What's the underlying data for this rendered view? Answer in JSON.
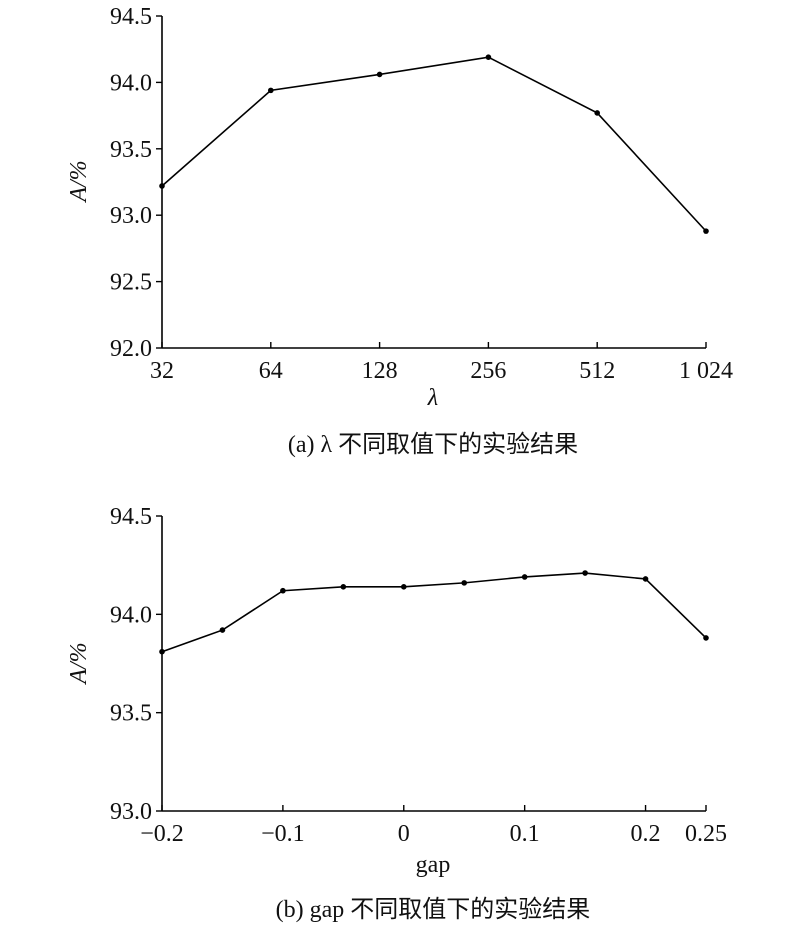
{
  "chart_data": [
    {
      "type": "line",
      "x": [
        "32",
        "64",
        "128",
        "256",
        "512",
        "1 024"
      ],
      "series": [
        {
          "values": [
            93.22,
            93.94,
            94.06,
            94.19,
            93.77,
            92.88
          ]
        }
      ],
      "xlabel": "λ",
      "ylabel": "A/%",
      "ylim": [
        92.0,
        94.5
      ],
      "yticks": [
        "92.0",
        "92.5",
        "93.0",
        "93.5",
        "94.0",
        "94.5"
      ],
      "caption": "(a) λ 不同取值下的实验结果",
      "grid": false
    },
    {
      "type": "line",
      "x": [
        -0.2,
        -0.15,
        -0.1,
        -0.05,
        0,
        0.05,
        0.1,
        0.15,
        0.2,
        0.25
      ],
      "xticks": [
        "−0.2",
        "−0.1",
        "0",
        "0.1",
        "0.2",
        "0.25"
      ],
      "series": [
        {
          "values": [
            93.81,
            93.92,
            94.12,
            94.14,
            94.14,
            94.16,
            94.19,
            94.21,
            94.18,
            93.88
          ]
        }
      ],
      "xlabel": "gap",
      "ylabel": "A/%",
      "ylim": [
        93.0,
        94.5
      ],
      "yticks": [
        "93.0",
        "93.5",
        "94.0",
        "94.5"
      ],
      "caption": "(b) gap 不同取值下的实验结果",
      "grid": false
    }
  ]
}
